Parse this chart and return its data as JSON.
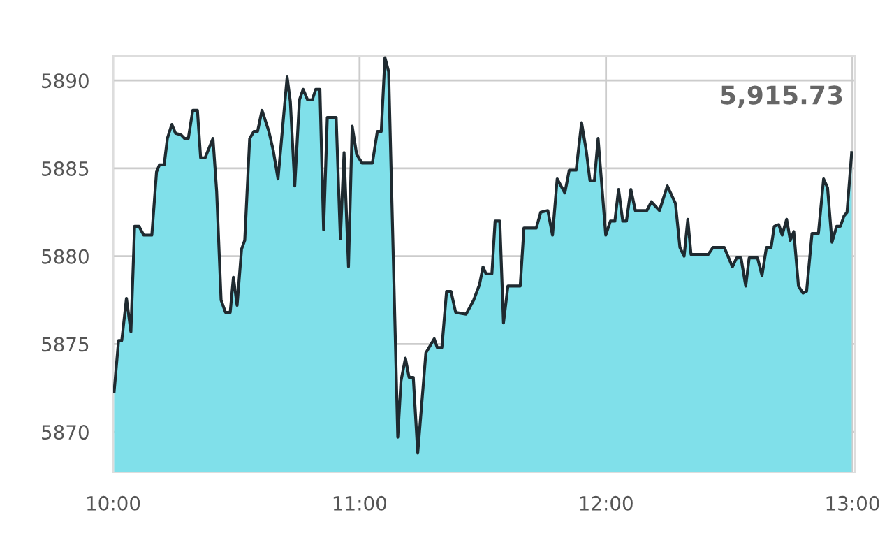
{
  "chart_data": {
    "type": "area",
    "x": [
      10.004,
      10.022,
      10.035,
      10.054,
      10.072,
      10.087,
      10.105,
      10.124,
      10.157,
      10.176,
      10.188,
      10.207,
      10.22,
      10.238,
      10.253,
      10.276,
      10.29,
      10.305,
      10.323,
      10.342,
      10.355,
      10.373,
      10.405,
      10.42,
      10.438,
      10.456,
      10.475,
      10.488,
      10.503,
      10.521,
      10.534,
      10.554,
      10.571,
      10.586,
      10.604,
      10.632,
      10.65,
      10.669,
      10.706,
      10.719,
      10.737,
      10.756,
      10.771,
      10.789,
      10.808,
      10.822,
      10.839,
      10.854,
      10.869,
      10.905,
      10.922,
      10.937,
      10.955,
      10.97,
      10.988,
      11.01,
      11.052,
      11.072,
      11.088,
      11.103,
      11.118,
      11.155,
      11.168,
      11.186,
      11.201,
      11.218,
      11.236,
      11.269,
      11.303,
      11.315,
      11.334,
      11.353,
      11.371,
      11.39,
      11.432,
      11.463,
      11.487,
      11.501,
      11.513,
      11.537,
      11.55,
      11.569,
      11.584,
      11.602,
      11.652,
      11.667,
      11.717,
      11.735,
      11.764,
      11.783,
      11.802,
      11.833,
      11.851,
      11.879,
      11.901,
      11.92,
      11.935,
      11.953,
      11.968,
      11.999,
      12.018,
      12.036,
      12.051,
      12.068,
      12.083,
      12.101,
      12.119,
      12.166,
      12.184,
      12.217,
      12.249,
      12.282,
      12.3,
      12.317,
      12.332,
      12.345,
      12.415,
      12.434,
      12.48,
      12.513,
      12.53,
      12.548,
      12.567,
      12.581,
      12.615,
      12.633,
      12.651,
      12.67,
      12.683,
      12.701,
      12.715,
      12.733,
      12.748,
      12.762,
      12.781,
      12.799,
      12.814,
      12.836,
      12.862,
      12.883,
      12.899,
      12.917,
      12.936,
      12.951,
      12.966,
      12.978,
      12.997
    ],
    "series": [
      {
        "color": "#80e0ea",
        "values": [
          5872.3,
          5875.2,
          5875.2,
          5877.6,
          5875.7,
          5881.7,
          5881.7,
          5881.2,
          5881.2,
          5884.8,
          5885.2,
          5885.2,
          5886.7,
          5887.5,
          5887.0,
          5886.9,
          5886.7,
          5886.7,
          5888.3,
          5888.3,
          5885.6,
          5885.6,
          5886.7,
          5883.7,
          5877.5,
          5876.8,
          5876.8,
          5878.8,
          5877.2,
          5880.4,
          5880.9,
          5886.7,
          5887.1,
          5887.1,
          5888.3,
          5887.1,
          5886.0,
          5884.4,
          5890.2,
          5888.8,
          5884.0,
          5888.9,
          5889.5,
          5888.9,
          5888.9,
          5889.5,
          5889.5,
          5881.5,
          5887.9,
          5887.9,
          5881.0,
          5885.9,
          5879.4,
          5887.4,
          5885.8,
          5885.3,
          5885.3,
          5887.1,
          5887.1,
          5891.3,
          5890.5,
          5869.7,
          5872.9,
          5874.2,
          5873.1,
          5873.1,
          5868.8,
          5874.5,
          5875.3,
          5874.8,
          5874.8,
          5878.0,
          5878.0,
          5876.8,
          5876.7,
          5877.5,
          5878.4,
          5879.4,
          5879.0,
          5879.0,
          5882.0,
          5882.0,
          5876.2,
          5878.3,
          5878.3,
          5881.6,
          5881.6,
          5882.5,
          5882.6,
          5881.2,
          5884.4,
          5883.6,
          5884.9,
          5884.9,
          5887.6,
          5886.0,
          5884.3,
          5884.3,
          5886.7,
          5881.2,
          5882.0,
          5882.0,
          5883.8,
          5882.0,
          5882.0,
          5883.8,
          5882.6,
          5882.6,
          5883.1,
          5882.6,
          5884.0,
          5883.0,
          5880.5,
          5880.0,
          5882.1,
          5880.1,
          5880.1,
          5880.5,
          5880.5,
          5879.4,
          5879.9,
          5879.9,
          5878.3,
          5879.9,
          5879.9,
          5878.9,
          5880.5,
          5880.5,
          5881.7,
          5881.8,
          5881.2,
          5882.1,
          5880.9,
          5881.4,
          5878.3,
          5877.9,
          5878.0,
          5881.3,
          5881.3,
          5884.4,
          5883.9,
          5880.8,
          5881.7,
          5881.7,
          5882.3,
          5882.5,
          5885.9
        ]
      }
    ],
    "xlim": [
      10.0,
      13.01
    ],
    "ylim": [
      5867.7,
      5891.4
    ],
    "xticks": [
      {
        "value": 10,
        "label": "10:00"
      },
      {
        "value": 11,
        "label": "11:00"
      },
      {
        "value": 12,
        "label": "12:00"
      },
      {
        "value": 13,
        "label": "13:00"
      }
    ],
    "yticks": [
      5870,
      5875,
      5880,
      5885,
      5890
    ],
    "grid": true,
    "annotations": [
      "5,915.73"
    ]
  }
}
